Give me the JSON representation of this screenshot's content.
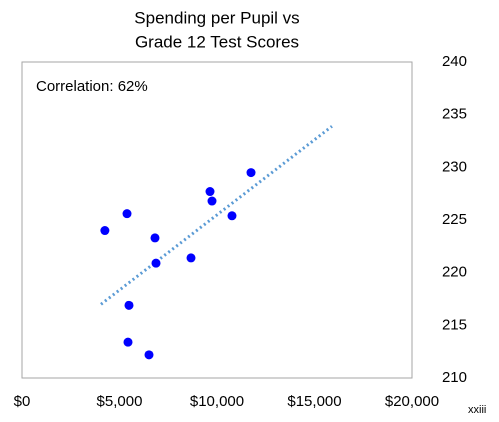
{
  "chart_data": {
    "type": "scatter",
    "title": [
      "Spending per Pupil vs",
      "Grade 12 Test Scores"
    ],
    "annotation": "Correlation: 62%",
    "footnote": "xxiii",
    "x": [
      4250,
      5385,
      5487,
      5436,
      6513,
      6820,
      6872,
      8667,
      9641,
      9744,
      10769,
      11744
    ],
    "series": [
      {
        "name": "Grade 12 Test Scores",
        "color": "#0000ff",
        "values": [
          224,
          225.6,
          216.9,
          213.4,
          212.2,
          223.3,
          220.9,
          221.4,
          227.7,
          226.8,
          225.4,
          229.5
        ]
      }
    ],
    "trendline": {
      "color": "#5b9bd5",
      "x": [
        4051,
        15897
      ],
      "values": [
        217,
        233.9
      ]
    },
    "xlim": [
      0,
      20000
    ],
    "xticks": [
      {
        "value": 0,
        "label": "$0"
      },
      {
        "value": 5000,
        "label": "$5,000"
      },
      {
        "value": 10000,
        "label": "$10,000"
      },
      {
        "value": 15000,
        "label": "$15,000"
      },
      {
        "value": 20000,
        "label": "$20,000"
      }
    ],
    "ylim": [
      210,
      240
    ],
    "yticks": [
      210,
      215,
      220,
      225,
      230,
      235,
      240
    ],
    "y_axis_side": "right",
    "grid": false
  }
}
